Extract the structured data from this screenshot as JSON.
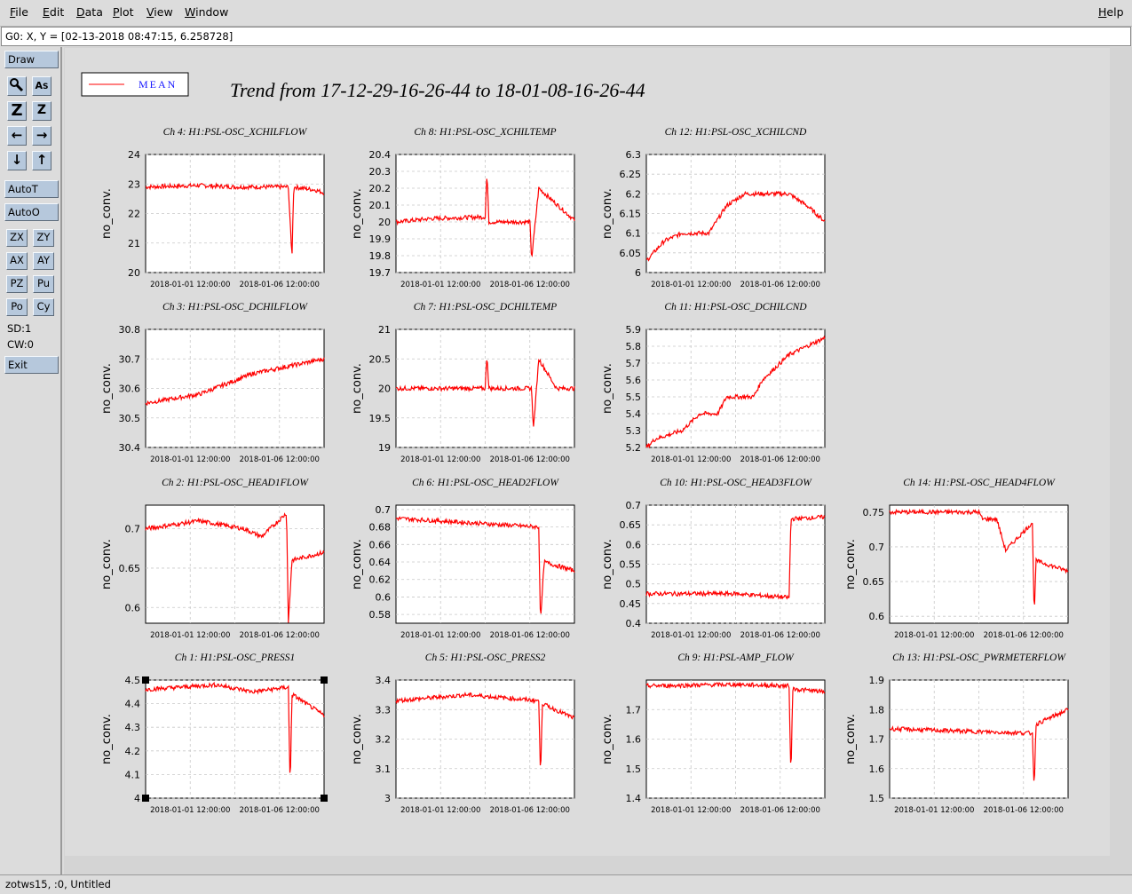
{
  "menubar": {
    "items": [
      {
        "label": "File",
        "ul": "F",
        "rest": "ile"
      },
      {
        "label": "Edit",
        "ul": "E",
        "rest": "dit"
      },
      {
        "label": "Data",
        "ul": "D",
        "rest": "ata"
      },
      {
        "label": "Plot",
        "ul": "P",
        "rest": "lot"
      },
      {
        "label": "View",
        "ul": "V",
        "rest": "iew"
      },
      {
        "label": "Window",
        "ul": "W",
        "rest": "indow"
      }
    ],
    "help": {
      "ul": "H",
      "rest": "elp"
    }
  },
  "status_line": "G0: X, Y = [02-13-2018 08:47:15, 6.258728]",
  "toolbar": {
    "draw": "Draw",
    "icon_buttons": [
      {
        "glyph": "🔍",
        "name": "zoom-icon"
      },
      {
        "glyph": "A͠",
        "name": "text-icon"
      },
      {
        "glyph": "Z",
        "name": "zoom-in-icon"
      },
      {
        "glyph": "Z",
        "name": "zoom-out-icon"
      },
      {
        "glyph": "←",
        "name": "arrow-left-icon"
      },
      {
        "glyph": "→",
        "name": "arrow-right-icon"
      },
      {
        "glyph": "↓",
        "name": "arrow-down-icon"
      },
      {
        "glyph": "↑",
        "name": "arrow-up-icon"
      }
    ],
    "autot": "AutoT",
    "autoo": "AutoO",
    "small_buttons": [
      "ZX",
      "ZY",
      "AX",
      "AY",
      "PZ",
      "Pu",
      "Po",
      "Cy"
    ],
    "sd": "SD:1",
    "cw": "CW:0",
    "exit": "Exit"
  },
  "plot": {
    "title": "Trend from 17-12-29-16-26-44 to 18-01-08-16-26-44",
    "legend": "MEAN",
    "trace_color": "#ff0000",
    "ylabel": "no_conv.",
    "xticks": [
      "2018-01-01 12:00:00",
      "2018-01-06 12:00:00"
    ]
  },
  "chart_data": [
    {
      "type": "line",
      "title": "Ch 4: H1:PSL-OSC_XCHILFLOW",
      "ylabel": "no_conv.",
      "ylim": [
        20,
        24
      ],
      "yticks": [
        "20",
        "21",
        "22",
        "23",
        "24"
      ],
      "series": [
        {
          "name": "MEAN",
          "points": [
            [
              0,
              22.9
            ],
            [
              0.3,
              22.95
            ],
            [
              0.5,
              22.9
            ],
            [
              0.8,
              22.9
            ],
            [
              0.82,
              20.5
            ],
            [
              0.83,
              22.9
            ],
            [
              0.95,
              22.8
            ],
            [
              1,
              22.7
            ]
          ]
        }
      ]
    },
    {
      "type": "line",
      "title": "Ch 8: H1:PSL-OSC_XCHILTEMP",
      "ylabel": "no_conv.",
      "ylim": [
        19.7,
        20.4
      ],
      "yticks": [
        "19.7",
        "19.8",
        "19.9",
        "20",
        "20.1",
        "20.2",
        "20.3",
        "20.4"
      ],
      "series": [
        {
          "name": "MEAN",
          "points": [
            [
              0,
              20.0
            ],
            [
              0.2,
              20.02
            ],
            [
              0.5,
              20.03
            ],
            [
              0.51,
              20.3
            ],
            [
              0.52,
              20.0
            ],
            [
              0.75,
              20.0
            ],
            [
              0.76,
              19.78
            ],
            [
              0.8,
              20.2
            ],
            [
              1,
              20.01
            ]
          ]
        }
      ]
    },
    {
      "type": "line",
      "title": "Ch 12: H1:PSL-OSC_XCHILCND",
      "ylabel": "no_conv.",
      "ylim": [
        6,
        6.3
      ],
      "yticks": [
        "6",
        "6.05",
        "6.1",
        "6.15",
        "6.2",
        "6.25",
        "6.3"
      ],
      "series": [
        {
          "name": "MEAN",
          "points": [
            [
              0,
              6.03
            ],
            [
              0.1,
              6.08
            ],
            [
              0.2,
              6.1
            ],
            [
              0.35,
              6.1
            ],
            [
              0.45,
              6.17
            ],
            [
              0.55,
              6.2
            ],
            [
              0.8,
              6.2
            ],
            [
              0.9,
              6.17
            ],
            [
              1,
              6.13
            ]
          ]
        }
      ]
    },
    {
      "type": "line",
      "title": "Ch 3: H1:PSL-OSC_DCHILFLOW",
      "ylabel": "no_conv.",
      "ylim": [
        30.4,
        30.8
      ],
      "yticks": [
        "30.4",
        "30.5",
        "30.6",
        "30.7",
        "30.8"
      ],
      "series": [
        {
          "name": "MEAN",
          "points": [
            [
              0,
              30.55
            ],
            [
              0.3,
              30.58
            ],
            [
              0.6,
              30.65
            ],
            [
              1,
              30.7
            ]
          ]
        }
      ]
    },
    {
      "type": "line",
      "title": "Ch 7: H1:PSL-OSC_DCHILTEMP",
      "ylabel": "no_conv.",
      "ylim": [
        19,
        21
      ],
      "yticks": [
        "19",
        "19.5",
        "20",
        "20.5",
        "21"
      ],
      "series": [
        {
          "name": "MEAN",
          "points": [
            [
              0,
              20.0
            ],
            [
              0.5,
              20.0
            ],
            [
              0.51,
              20.6
            ],
            [
              0.52,
              20.0
            ],
            [
              0.76,
              20.0
            ],
            [
              0.77,
              19.3
            ],
            [
              0.8,
              20.5
            ],
            [
              0.9,
              20.0
            ]
          ]
        }
      ]
    },
    {
      "type": "line",
      "title": "Ch 11: H1:PSL-OSC_DCHILCND",
      "ylabel": "no_conv.",
      "ylim": [
        5.2,
        5.9
      ],
      "yticks": [
        "5.2",
        "5.3",
        "5.4",
        "5.5",
        "5.6",
        "5.7",
        "5.8",
        "5.9"
      ],
      "series": [
        {
          "name": "MEAN",
          "points": [
            [
              0,
              5.2
            ],
            [
              0.05,
              5.25
            ],
            [
              0.2,
              5.3
            ],
            [
              0.3,
              5.4
            ],
            [
              0.4,
              5.4
            ],
            [
              0.45,
              5.5
            ],
            [
              0.6,
              5.5
            ],
            [
              0.65,
              5.6
            ],
            [
              0.75,
              5.7
            ],
            [
              0.8,
              5.75
            ],
            [
              0.9,
              5.8
            ],
            [
              1,
              5.85
            ]
          ]
        }
      ]
    },
    {
      "type": "line",
      "title": "Ch 2: H1:PSL-OSC_HEAD1FLOW",
      "ylabel": "no_conv.",
      "ylim": [
        0.58,
        0.73
      ],
      "yticks": [
        "0.6",
        "0.65",
        "0.7"
      ],
      "series": [
        {
          "name": "MEAN",
          "points": [
            [
              0,
              0.7
            ],
            [
              0.3,
              0.71
            ],
            [
              0.55,
              0.7
            ],
            [
              0.65,
              0.69
            ],
            [
              0.79,
              0.72
            ],
            [
              0.8,
              0.58
            ],
            [
              0.82,
              0.66
            ],
            [
              1,
              0.67
            ]
          ]
        }
      ]
    },
    {
      "type": "line",
      "title": "Ch 6: H1:PSL-OSC_HEAD2FLOW",
      "ylabel": "no_conv.",
      "ylim": [
        0.57,
        0.705
      ],
      "yticks": [
        "0.58",
        "0.6",
        "0.62",
        "0.64",
        "0.66",
        "0.68",
        "0.7"
      ],
      "series": [
        {
          "name": "MEAN",
          "points": [
            [
              0,
              0.69
            ],
            [
              0.4,
              0.685
            ],
            [
              0.8,
              0.68
            ],
            [
              0.81,
              0.57
            ],
            [
              0.83,
              0.64
            ],
            [
              1,
              0.63
            ]
          ]
        }
      ]
    },
    {
      "type": "line",
      "title": "Ch 10: H1:PSL-OSC_HEAD3FLOW",
      "ylabel": "no_conv.",
      "ylim": [
        0.4,
        0.7
      ],
      "yticks": [
        "0.4",
        "0.45",
        "0.5",
        "0.55",
        "0.6",
        "0.65",
        "0.7"
      ],
      "series": [
        {
          "name": "MEAN",
          "points": [
            [
              0,
              0.475
            ],
            [
              0.5,
              0.475
            ],
            [
              0.8,
              0.465
            ],
            [
              0.81,
              0.665
            ],
            [
              1,
              0.67
            ]
          ]
        }
      ]
    },
    {
      "type": "line",
      "title": "Ch 14: H1:PSL-OSC_HEAD4FLOW",
      "ylabel": "no_conv.",
      "ylim": [
        0.59,
        0.76
      ],
      "yticks": [
        "0.6",
        "0.65",
        "0.7",
        "0.75"
      ],
      "series": [
        {
          "name": "MEAN",
          "points": [
            [
              0,
              0.75
            ],
            [
              0.5,
              0.75
            ],
            [
              0.52,
              0.74
            ],
            [
              0.6,
              0.74
            ],
            [
              0.65,
              0.695
            ],
            [
              0.8,
              0.735
            ],
            [
              0.81,
              0.6
            ],
            [
              0.82,
              0.68
            ],
            [
              1,
              0.665
            ]
          ]
        }
      ]
    },
    {
      "type": "line",
      "title": "Ch 1: H1:PSL-OSC_PRESS1",
      "ylabel": "no_conv.",
      "ylim": [
        4,
        4.5
      ],
      "yticks": [
        "4",
        "4.1",
        "4.2",
        "4.3",
        "4.4",
        "4.5"
      ],
      "series": [
        {
          "name": "MEAN",
          "points": [
            [
              0,
              4.46
            ],
            [
              0.4,
              4.48
            ],
            [
              0.6,
              4.45
            ],
            [
              0.8,
              4.47
            ],
            [
              0.81,
              4.03
            ],
            [
              0.82,
              4.44
            ],
            [
              1,
              4.35
            ]
          ]
        }
      ]
    },
    {
      "type": "line",
      "title": "Ch 5: H1:PSL-OSC_PRESS2",
      "ylabel": "no_conv.",
      "ylim": [
        3,
        3.4
      ],
      "yticks": [
        "3",
        "3.1",
        "3.2",
        "3.3",
        "3.4"
      ],
      "series": [
        {
          "name": "MEAN",
          "points": [
            [
              0,
              3.33
            ],
            [
              0.4,
              3.35
            ],
            [
              0.8,
              3.33
            ],
            [
              0.81,
              3.07
            ],
            [
              0.82,
              3.32
            ],
            [
              1,
              3.27
            ]
          ]
        }
      ]
    },
    {
      "type": "line",
      "title": "Ch 9: H1:PSL-AMP_FLOW",
      "ylabel": "no_conv.",
      "ylim": [
        1.4,
        1.8
      ],
      "yticks": [
        "1.4",
        "1.5",
        "1.6",
        "1.7"
      ],
      "series": [
        {
          "name": "MEAN",
          "points": [
            [
              0,
              1.78
            ],
            [
              0.5,
              1.785
            ],
            [
              0.8,
              1.78
            ],
            [
              0.81,
              1.46
            ],
            [
              0.82,
              1.77
            ],
            [
              1,
              1.76
            ]
          ]
        }
      ]
    },
    {
      "type": "line",
      "title": "Ch 13: H1:PSL-OSC_PWRMETERFLOW",
      "ylabel": "no_conv.",
      "ylim": [
        1.5,
        1.9
      ],
      "yticks": [
        "1.5",
        "1.6",
        "1.7",
        "1.8",
        "1.9"
      ],
      "series": [
        {
          "name": "MEAN",
          "points": [
            [
              0,
              1.735
            ],
            [
              0.5,
              1.725
            ],
            [
              0.8,
              1.72
            ],
            [
              0.81,
              1.53
            ],
            [
              0.82,
              1.75
            ],
            [
              1,
              1.8
            ]
          ]
        }
      ]
    }
  ],
  "bottom_status": "zotws15, :0, Untitled"
}
